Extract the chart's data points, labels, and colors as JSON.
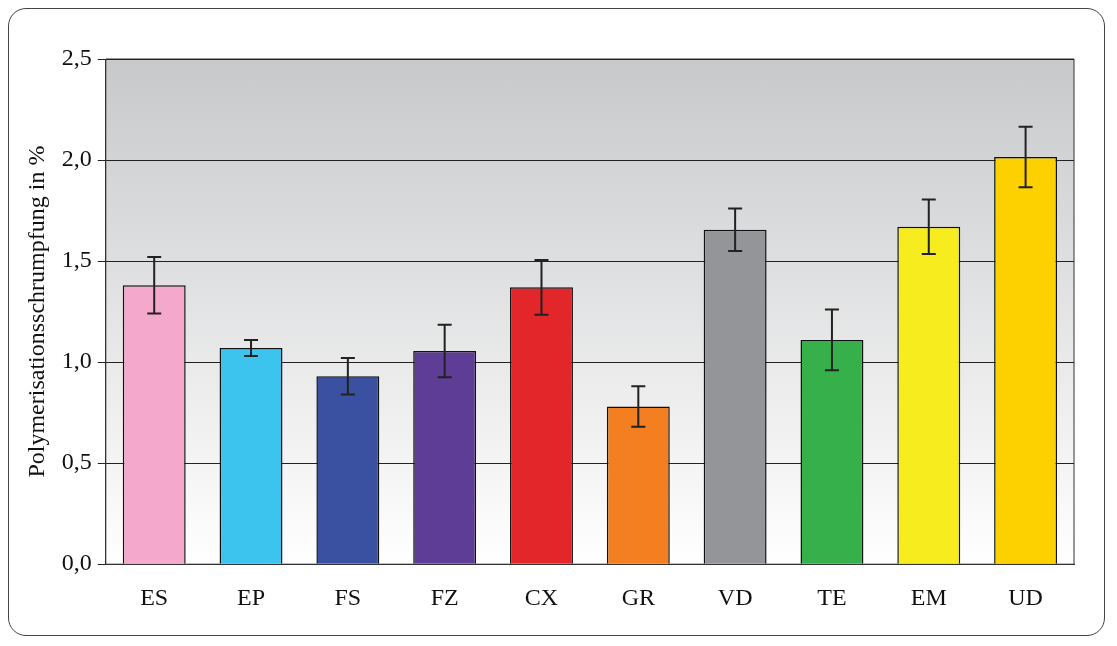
{
  "chart_data": {
    "type": "bar",
    "ylabel": "Polymerisationsschrumpfung in %",
    "categories": [
      "ES",
      "EP",
      "FS",
      "FZ",
      "CX",
      "GR",
      "VD",
      "TE",
      "EM",
      "UD"
    ],
    "values": [
      1.38,
      1.07,
      0.93,
      1.055,
      1.37,
      0.78,
      1.655,
      1.11,
      1.67,
      2.015
    ],
    "errors": [
      0.14,
      0.04,
      0.09,
      0.13,
      0.135,
      0.1,
      0.105,
      0.15,
      0.135,
      0.15
    ],
    "colors": [
      "#f4a9cc",
      "#3cc4ee",
      "#3a50a0",
      "#5e3d96",
      "#e2262a",
      "#f47f20",
      "#939598",
      "#35b04a",
      "#f6ec1e",
      "#fdd000"
    ],
    "ylim": [
      0,
      2.5
    ],
    "yticks": [
      {
        "value": 0,
        "label": "0,0"
      },
      {
        "value": 0.5,
        "label": "0,5"
      },
      {
        "value": 1,
        "label": "1,0"
      },
      {
        "value": 1.5,
        "label": "1,5"
      },
      {
        "value": 2,
        "label": "2,0"
      },
      {
        "value": 2.5,
        "label": "2,5"
      }
    ],
    "grid": "y",
    "legend": false
  }
}
